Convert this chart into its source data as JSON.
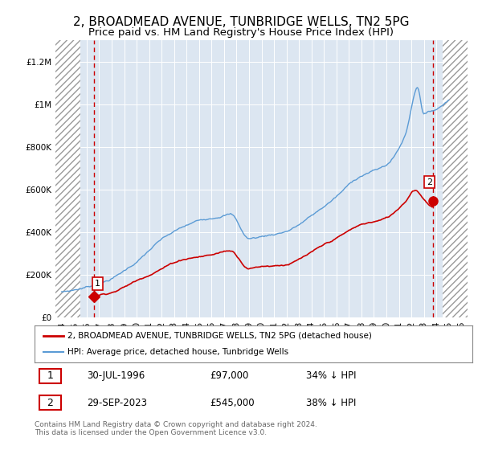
{
  "title": "2, BROADMEAD AVENUE, TUNBRIDGE WELLS, TN2 5PG",
  "subtitle": "Price paid vs. HM Land Registry's House Price Index (HPI)",
  "title_fontsize": 11,
  "subtitle_fontsize": 9.5,
  "ylim": [
    0,
    1300000
  ],
  "yticks": [
    0,
    200000,
    400000,
    600000,
    800000,
    1000000,
    1200000
  ],
  "ytick_labels": [
    "£0",
    "£200K",
    "£400K",
    "£600K",
    "£800K",
    "£1M",
    "£1.2M"
  ],
  "xmin": 1993.5,
  "xmax": 2026.5,
  "hatch_left_xmax": 1995.5,
  "hatch_right_xmin": 2024.5,
  "background_color": "#ffffff",
  "plot_bg_color": "#dce6f1",
  "grid_color": "#ffffff",
  "red_color": "#cc0000",
  "blue_color": "#5b9bd5",
  "marker1_x": 1996.58,
  "marker1_y": 97000,
  "marker2_x": 2023.75,
  "marker2_y": 545000,
  "label1_date": "30-JUL-1996",
  "label1_price": "£97,000",
  "label1_hpi": "34% ↓ HPI",
  "label2_date": "29-SEP-2023",
  "label2_price": "£545,000",
  "label2_hpi": "38% ↓ HPI",
  "legend_line1": "2, BROADMEAD AVENUE, TUNBRIDGE WELLS, TN2 5PG (detached house)",
  "legend_line2": "HPI: Average price, detached house, Tunbridge Wells",
  "footer": "Contains HM Land Registry data © Crown copyright and database right 2024.\nThis data is licensed under the Open Government Licence v3.0.",
  "xticks": [
    1994,
    1995,
    1996,
    1997,
    1998,
    1999,
    2000,
    2001,
    2002,
    2003,
    2004,
    2005,
    2006,
    2007,
    2008,
    2009,
    2010,
    2011,
    2012,
    2013,
    2014,
    2015,
    2016,
    2017,
    2018,
    2019,
    2020,
    2021,
    2022,
    2023,
    2024,
    2025,
    2026
  ]
}
